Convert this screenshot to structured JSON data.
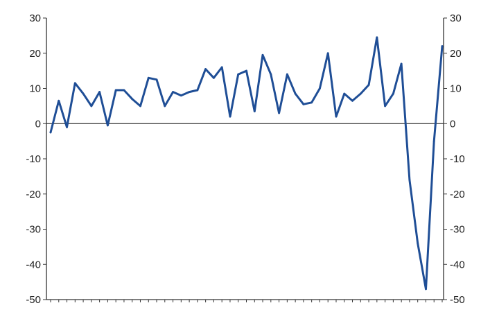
{
  "chart_data": {
    "type": "line",
    "title": "",
    "xlabel": "",
    "ylabel": "",
    "ylim": [
      -50,
      30
    ],
    "y_ticks": [
      30,
      20,
      10,
      0,
      -10,
      -20,
      -30,
      -40,
      -50
    ],
    "y_tick_labels": [
      "30",
      "20",
      "10",
      "0",
      "-10",
      "-20",
      "-30",
      "-40",
      "-50"
    ],
    "right_axis": true,
    "zero_line": true,
    "grid": false,
    "legend": "none",
    "series": [
      {
        "color": "#1f4e96",
        "values": [
          -2.5,
          6.5,
          -1,
          11.5,
          8.5,
          5,
          9,
          -0.5,
          9.5,
          9.5,
          7,
          5,
          13,
          12.5,
          5,
          9,
          8,
          9,
          9.5,
          15.5,
          13,
          16,
          2,
          14,
          15,
          3.5,
          19.5,
          14,
          3,
          14,
          8.5,
          5.5,
          6,
          10,
          20,
          2,
          8.5,
          6.5,
          8.5,
          11,
          24.5,
          5,
          8.5,
          17,
          -16,
          -34,
          -47,
          -5,
          22
        ]
      }
    ]
  }
}
